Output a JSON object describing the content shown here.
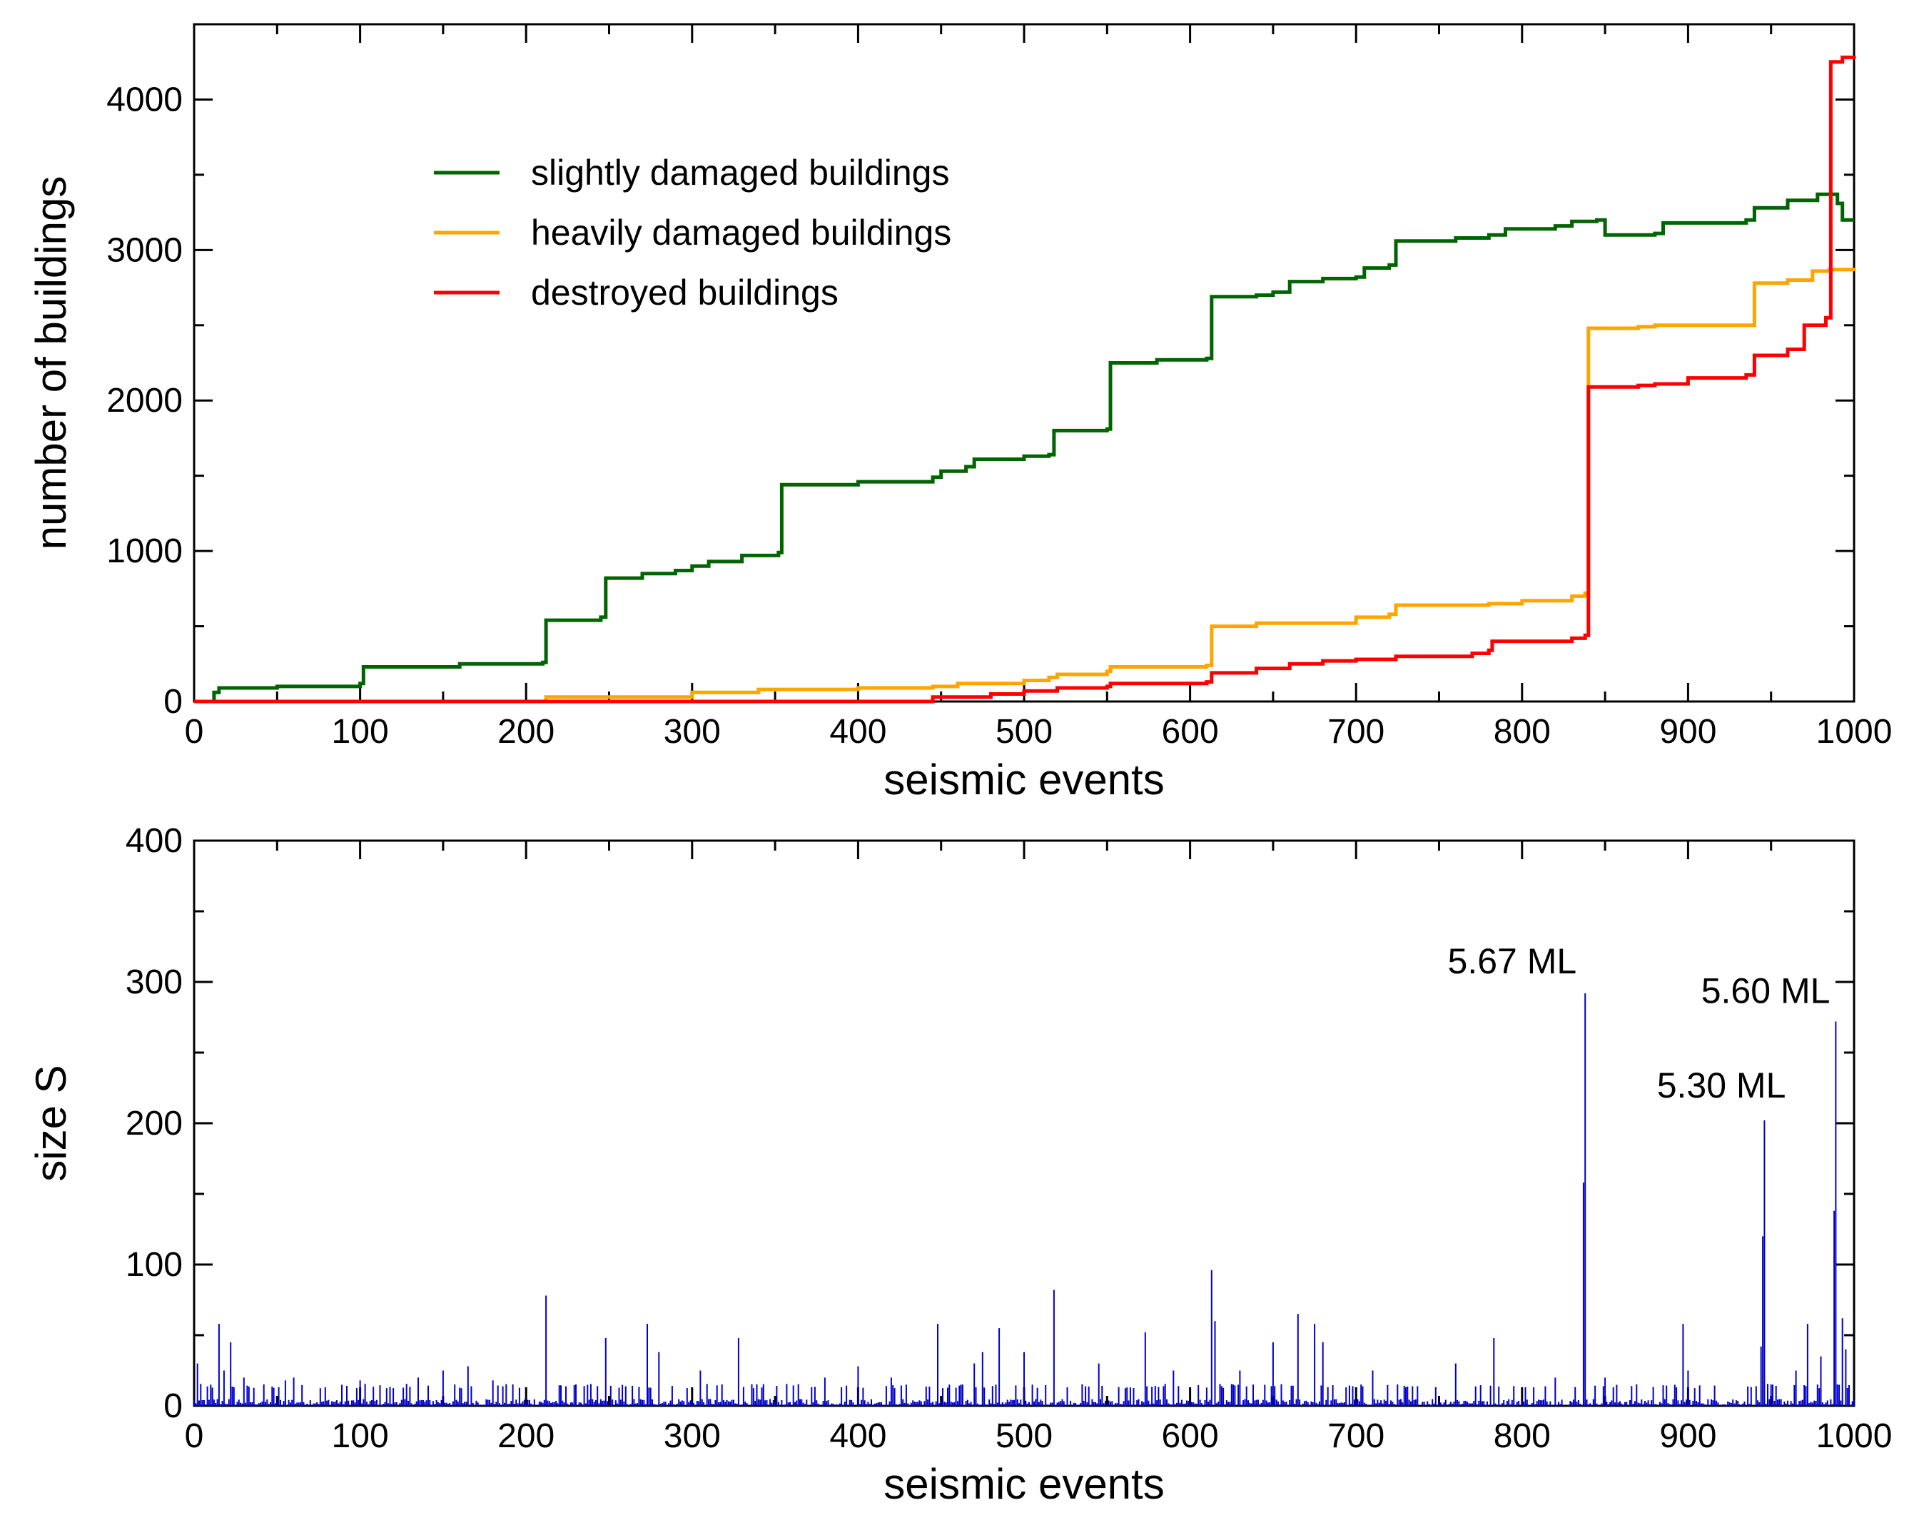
{
  "chart_data": [
    {
      "type": "line",
      "xlabel": "seismic events",
      "ylabel": "number of buildings",
      "xlim": [
        0,
        1000
      ],
      "ylim": [
        0,
        4500
      ],
      "xticks": [
        0,
        100,
        200,
        300,
        400,
        500,
        600,
        700,
        800,
        900,
        1000
      ],
      "yticks": [
        0,
        1000,
        2000,
        3000,
        4000
      ],
      "legend_position": "top-left",
      "series": [
        {
          "name": "slightly damaged buildings",
          "color": "#006400",
          "points": [
            [
              0,
              0
            ],
            [
              12,
              60
            ],
            [
              15,
              90
            ],
            [
              50,
              100
            ],
            [
              100,
              120
            ],
            [
              102,
              230
            ],
            [
              160,
              250
            ],
            [
              210,
              260
            ],
            [
              212,
              540
            ],
            [
              245,
              560
            ],
            [
              248,
              820
            ],
            [
              270,
              850
            ],
            [
              290,
              870
            ],
            [
              300,
              900
            ],
            [
              310,
              930
            ],
            [
              330,
              970
            ],
            [
              352,
              990
            ],
            [
              354,
              1440
            ],
            [
              400,
              1460
            ],
            [
              445,
              1490
            ],
            [
              450,
              1530
            ],
            [
              465,
              1560
            ],
            [
              470,
              1610
            ],
            [
              500,
              1630
            ],
            [
              515,
              1640
            ],
            [
              518,
              1800
            ],
            [
              550,
              1810
            ],
            [
              552,
              2250
            ],
            [
              580,
              2270
            ],
            [
              610,
              2280
            ],
            [
              613,
              2690
            ],
            [
              640,
              2700
            ],
            [
              650,
              2720
            ],
            [
              660,
              2790
            ],
            [
              680,
              2810
            ],
            [
              700,
              2820
            ],
            [
              705,
              2880
            ],
            [
              720,
              2900
            ],
            [
              724,
              3060
            ],
            [
              760,
              3080
            ],
            [
              780,
              3100
            ],
            [
              790,
              3140
            ],
            [
              820,
              3160
            ],
            [
              830,
              3190
            ],
            [
              845,
              3200
            ],
            [
              850,
              3100
            ],
            [
              880,
              3110
            ],
            [
              885,
              3180
            ],
            [
              935,
              3200
            ],
            [
              940,
              3280
            ],
            [
              960,
              3330
            ],
            [
              978,
              3370
            ],
            [
              990,
              3310
            ],
            [
              993,
              3200
            ],
            [
              1000,
              3200
            ]
          ]
        },
        {
          "name": "heavily damaged buildings",
          "color": "#FFA500",
          "points": [
            [
              0,
              0
            ],
            [
              210,
              0
            ],
            [
              212,
              30
            ],
            [
              300,
              60
            ],
            [
              340,
              80
            ],
            [
              400,
              90
            ],
            [
              445,
              100
            ],
            [
              460,
              120
            ],
            [
              500,
              140
            ],
            [
              515,
              160
            ],
            [
              520,
              180
            ],
            [
              550,
              200
            ],
            [
              552,
              230
            ],
            [
              610,
              240
            ],
            [
              613,
              500
            ],
            [
              640,
              520
            ],
            [
              700,
              560
            ],
            [
              720,
              580
            ],
            [
              724,
              640
            ],
            [
              780,
              650
            ],
            [
              800,
              670
            ],
            [
              830,
              700
            ],
            [
              838,
              720
            ],
            [
              840,
              2480
            ],
            [
              870,
              2490
            ],
            [
              880,
              2500
            ],
            [
              935,
              2500
            ],
            [
              940,
              2780
            ],
            [
              960,
              2800
            ],
            [
              975,
              2860
            ],
            [
              985,
              2870
            ],
            [
              1000,
              2860
            ]
          ]
        },
        {
          "name": "destroyed buildings",
          "color": "#FF0000",
          "points": [
            [
              0,
              0
            ],
            [
              443,
              0
            ],
            [
              445,
              30
            ],
            [
              480,
              50
            ],
            [
              500,
              70
            ],
            [
              520,
              90
            ],
            [
              550,
              100
            ],
            [
              552,
              120
            ],
            [
              610,
              130
            ],
            [
              613,
              190
            ],
            [
              640,
              220
            ],
            [
              660,
              250
            ],
            [
              680,
              270
            ],
            [
              700,
              280
            ],
            [
              724,
              300
            ],
            [
              770,
              320
            ],
            [
              780,
              340
            ],
            [
              782,
              400
            ],
            [
              830,
              420
            ],
            [
              838,
              440
            ],
            [
              840,
              2090
            ],
            [
              870,
              2100
            ],
            [
              880,
              2110
            ],
            [
              900,
              2150
            ],
            [
              935,
              2170
            ],
            [
              940,
              2300
            ],
            [
              960,
              2340
            ],
            [
              970,
              2500
            ],
            [
              983,
              2550
            ],
            [
              986,
              4250
            ],
            [
              993,
              4280
            ],
            [
              1000,
              4270
            ]
          ]
        }
      ]
    },
    {
      "type": "bar",
      "xlabel": "seismic events",
      "ylabel": "size S",
      "xlim": [
        0,
        1000
      ],
      "ylim": [
        0,
        400
      ],
      "xticks": [
        0,
        100,
        200,
        300,
        400,
        500,
        600,
        700,
        800,
        900,
        1000
      ],
      "yticks": [
        0,
        100,
        200,
        300,
        400
      ],
      "color": "#0000CC",
      "baseline_noise_max": 12,
      "spikes": [
        [
          2,
          30
        ],
        [
          10,
          15
        ],
        [
          15,
          58
        ],
        [
          18,
          25
        ],
        [
          22,
          45
        ],
        [
          30,
          20
        ],
        [
          55,
          18
        ],
        [
          60,
          20
        ],
        [
          100,
          18
        ],
        [
          135,
          20
        ],
        [
          150,
          25
        ],
        [
          165,
          28
        ],
        [
          180,
          18
        ],
        [
          212,
          78
        ],
        [
          248,
          48
        ],
        [
          273,
          58
        ],
        [
          280,
          38
        ],
        [
          305,
          25
        ],
        [
          328,
          48
        ],
        [
          380,
          20
        ],
        [
          400,
          28
        ],
        [
          420,
          20
        ],
        [
          448,
          58
        ],
        [
          470,
          30
        ],
        [
          475,
          38
        ],
        [
          485,
          55
        ],
        [
          500,
          38
        ],
        [
          518,
          82
        ],
        [
          545,
          30
        ],
        [
          573,
          52
        ],
        [
          590,
          25
        ],
        [
          613,
          96
        ],
        [
          615,
          60
        ],
        [
          630,
          25
        ],
        [
          650,
          45
        ],
        [
          665,
          65
        ],
        [
          675,
          58
        ],
        [
          680,
          45
        ],
        [
          710,
          25
        ],
        [
          760,
          30
        ],
        [
          783,
          48
        ],
        [
          820,
          20
        ],
        [
          837,
          158
        ],
        [
          838,
          292
        ],
        [
          850,
          20
        ],
        [
          897,
          58
        ],
        [
          900,
          25
        ],
        [
          944,
          42
        ],
        [
          945,
          120
        ],
        [
          946,
          202
        ],
        [
          965,
          25
        ],
        [
          972,
          58
        ],
        [
          980,
          35
        ],
        [
          988,
          138
        ],
        [
          989,
          272
        ],
        [
          993,
          62
        ],
        [
          995,
          40
        ]
      ],
      "annotations": [
        {
          "text": "5.67 ML",
          "x": 838,
          "y": 292
        },
        {
          "text": "5.30 ML",
          "x": 946,
          "y": 202
        },
        {
          "text": "5.60 ML",
          "x": 989,
          "y": 272
        }
      ]
    }
  ]
}
